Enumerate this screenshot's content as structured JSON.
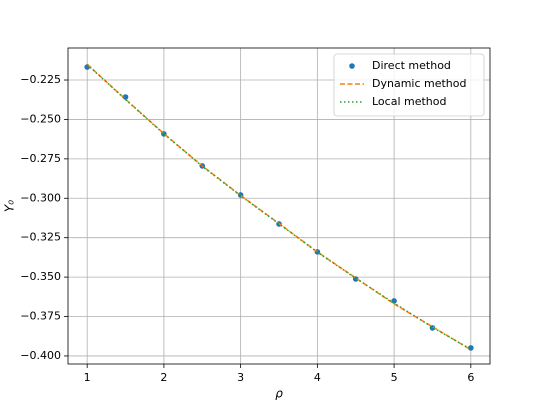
{
  "chart_data": {
    "type": "line",
    "xlabel": "ρ",
    "ylabel": "Y₀",
    "x": [
      1,
      1.5,
      2,
      2.5,
      3,
      3.5,
      4,
      4.5,
      5,
      5.5,
      6
    ],
    "series": [
      {
        "name": "Direct method",
        "color": "#1f77b4",
        "style": "dots",
        "values": [
          -0.2168,
          -0.2358,
          -0.2592,
          -0.2795,
          -0.2979,
          -0.3163,
          -0.334,
          -0.3512,
          -0.3651,
          -0.3822,
          -0.3949
        ]
      },
      {
        "name": "Dynamic method",
        "color": "#ff7f0e",
        "style": "dashed",
        "values": [
          -0.215,
          -0.2372,
          -0.259,
          -0.2795,
          -0.2982,
          -0.316,
          -0.334,
          -0.3505,
          -0.367,
          -0.3815,
          -0.396
        ]
      },
      {
        "name": "Local method",
        "color": "#2ca02c",
        "style": "dotted",
        "values": [
          -0.2152,
          -0.2374,
          -0.2592,
          -0.2797,
          -0.2984,
          -0.3162,
          -0.3342,
          -0.3507,
          -0.3665,
          -0.3818,
          -0.3958
        ]
      }
    ],
    "xlim": [
      0.75,
      6.25
    ],
    "ylim": [
      -0.4051,
      -0.2047
    ],
    "xticks": [
      1,
      2,
      3,
      4,
      5,
      6
    ],
    "yticks": [
      {
        "value": -0.225,
        "label": "−0.225"
      },
      {
        "value": -0.25,
        "label": "−0.250"
      },
      {
        "value": -0.275,
        "label": "−0.275"
      },
      {
        "value": -0.3,
        "label": "−0.300"
      },
      {
        "value": -0.325,
        "label": "−0.325"
      },
      {
        "value": -0.35,
        "label": "−0.350"
      },
      {
        "value": -0.375,
        "label": "−0.375"
      },
      {
        "value": -0.4,
        "label": "−0.400"
      }
    ],
    "grid": true,
    "legend": "upper right"
  }
}
